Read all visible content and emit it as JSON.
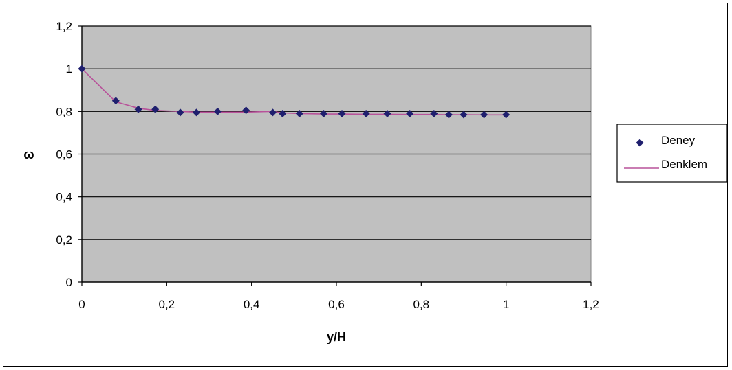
{
  "chart_data": {
    "type": "scatter",
    "xlabel": "y/H",
    "ylabel": "ω",
    "xlim": [
      0,
      1.2
    ],
    "ylim": [
      0,
      1.2
    ],
    "x_ticks": [
      "0",
      "0,2",
      "0,4",
      "0,6",
      "0,8",
      "1",
      "1,2"
    ],
    "y_ticks": [
      "0",
      "0,2",
      "0,4",
      "0,6",
      "0,8",
      "1",
      "1,2"
    ],
    "grid": "horizontal",
    "plot_background": "#c0c0c0",
    "legend_position": "right",
    "series": [
      {
        "name": "Deney",
        "kind": "points",
        "color": "#1f1f6e",
        "x": [
          0,
          0.08,
          0.133,
          0.173,
          0.232,
          0.27,
          0.32,
          0.387,
          0.45,
          0.473,
          0.513,
          0.57,
          0.613,
          0.67,
          0.72,
          0.773,
          0.83,
          0.865,
          0.9,
          0.948,
          1.0
        ],
        "y": [
          1.0,
          0.85,
          0.81,
          0.81,
          0.795,
          0.795,
          0.8,
          0.805,
          0.795,
          0.79,
          0.79,
          0.79,
          0.79,
          0.79,
          0.79,
          0.79,
          0.79,
          0.785,
          0.785,
          0.785,
          0.785
        ]
      },
      {
        "name": "Denklem",
        "kind": "line",
        "color": "#b8529a",
        "x": [
          0,
          0.08,
          0.133,
          0.173,
          0.232,
          0.27,
          0.32,
          0.387,
          0.45,
          0.473,
          0.513,
          0.57,
          0.613,
          0.67,
          0.72,
          0.773,
          0.83,
          0.865,
          0.9,
          0.948,
          1.0
        ],
        "y": [
          1.0,
          0.845,
          0.815,
          0.805,
          0.8,
          0.797,
          0.797,
          0.797,
          0.8,
          0.793,
          0.79,
          0.788,
          0.788,
          0.787,
          0.787,
          0.786,
          0.786,
          0.785,
          0.785,
          0.784,
          0.784
        ]
      }
    ]
  }
}
